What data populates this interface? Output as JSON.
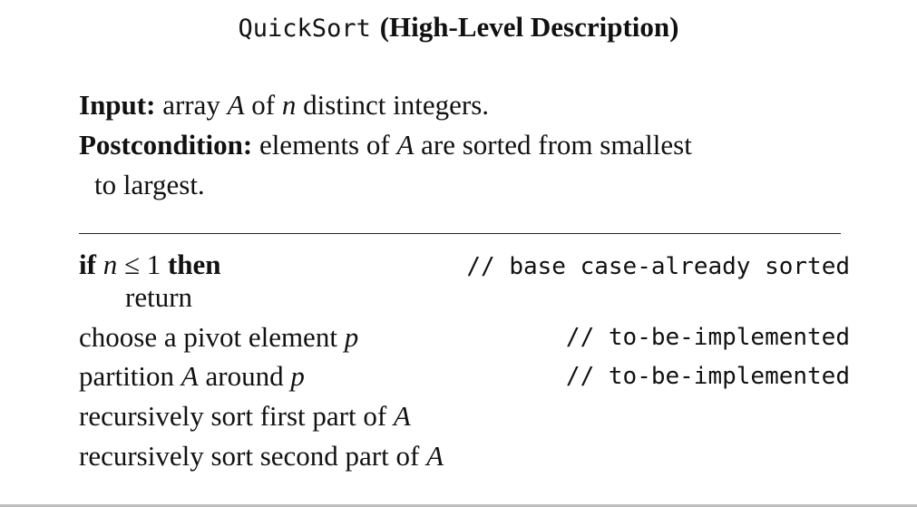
{
  "title": {
    "name": "QuickSort",
    "description": "(High-Level Description)"
  },
  "spec": {
    "input_label": "Input:",
    "input_text_1": "array",
    "input_var_A": "A",
    "input_text_2": "of",
    "input_var_n": "n",
    "input_text_3": "distinct integers.",
    "post_label": "Postcondition:",
    "post_text_1": "elements of",
    "post_var_A": "A",
    "post_text_2": "are sorted from smallest",
    "post_text_3": "to largest."
  },
  "algorithm": {
    "line1": {
      "kw_if": "if",
      "var_n": "n",
      "op": "≤ 1",
      "kw_then": "then",
      "comment": "// base case-already sorted"
    },
    "line2": {
      "text": "return"
    },
    "line3": {
      "text": "choose a pivot element",
      "var_p": "p",
      "comment": "// to-be-implemented"
    },
    "line4": {
      "text_1": "partition",
      "var_A": "A",
      "text_2": "around",
      "var_p": "p",
      "comment": "// to-be-implemented"
    },
    "line5": {
      "text": "recursively sort first part of",
      "var_A": "A"
    },
    "line6": {
      "text": "recursively sort second part of",
      "var_A": "A"
    }
  }
}
